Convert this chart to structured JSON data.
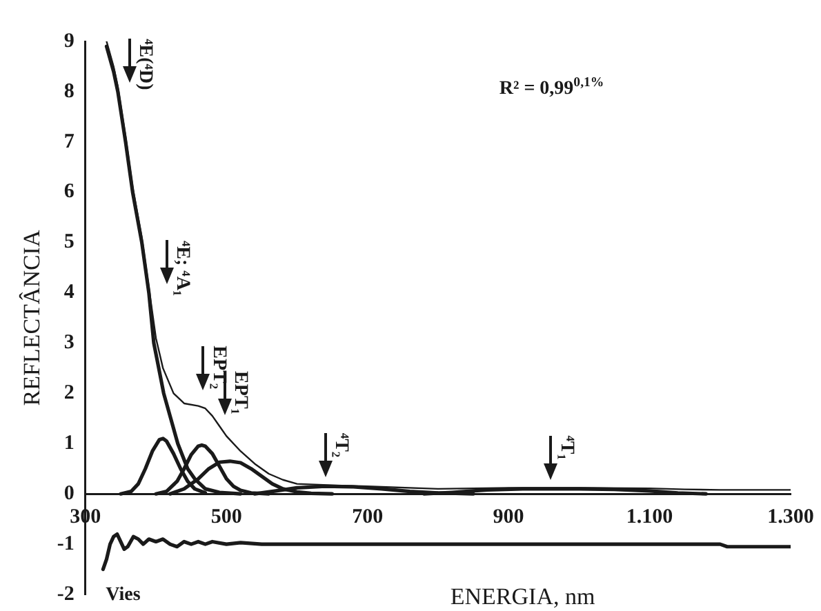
{
  "chart_data": {
    "type": "line",
    "xlabel": "ENERGIA, nm",
    "ylabel": "REFLECTÂNCIA",
    "xlim": [
      300,
      1300
    ],
    "xticks": [
      300,
      500,
      700,
      900,
      {
        "value": 1100,
        "label": "1.100"
      },
      {
        "value": 1300,
        "label": "1.300"
      }
    ],
    "ylim": [
      -2,
      9
    ],
    "yticks": [
      -2,
      -1,
      0,
      1,
      2,
      3,
      4,
      5,
      6,
      7,
      8,
      9
    ],
    "grid": false,
    "legend": false,
    "marker": "none",
    "line_style": "solid",
    "series": [
      {
        "color": "#1a1a1a",
        "x": [
          330,
          340,
          346,
          357,
          367,
          380,
          390,
          400,
          410,
          425,
          440,
          460,
          470,
          480,
          490,
          500,
          520,
          540,
          560,
          580,
          600,
          650,
          700,
          800,
          900,
          1000,
          1100,
          1150,
          1200,
          1300
        ],
        "values": [
          9,
          8.5,
          8.1,
          7.1,
          6.1,
          5.1,
          4.1,
          3.1,
          2.5,
          2.0,
          1.8,
          1.75,
          1.7,
          1.55,
          1.35,
          1.15,
          0.85,
          0.6,
          0.4,
          0.28,
          0.2,
          0.17,
          0.15,
          0.1,
          0.12,
          0.12,
          0.11,
          0.09,
          0.08,
          0.08
        ]
      },
      {
        "color": "#1a1a1a",
        "x": [
          330,
          340,
          346,
          357,
          367,
          380,
          390,
          397,
          411,
          431,
          445,
          455,
          470,
          490,
          520
        ],
        "values": [
          8.9,
          8.4,
          8.0,
          7.0,
          6.0,
          5.0,
          4.0,
          3.0,
          2.0,
          1.0,
          0.5,
          0.3,
          0.1,
          0.03,
          0
        ]
      },
      {
        "color": "#1a1a1a",
        "x": [
          350,
          365,
          375,
          385,
          395,
          405,
          410,
          415,
          425,
          435,
          445,
          455,
          470
        ],
        "values": [
          0,
          0.05,
          0.2,
          0.5,
          0.85,
          1.08,
          1.1,
          1.05,
          0.8,
          0.5,
          0.25,
          0.1,
          0.02
        ]
      },
      {
        "color": "#1a1a1a",
        "x": [
          400,
          415,
          430,
          440,
          450,
          460,
          465,
          470,
          480,
          490,
          500,
          510,
          520,
          535,
          560
        ],
        "values": [
          0,
          0.05,
          0.25,
          0.5,
          0.78,
          0.95,
          0.97,
          0.95,
          0.8,
          0.55,
          0.3,
          0.15,
          0.07,
          0.02,
          0
        ]
      },
      {
        "color": "#1a1a1a",
        "x": [
          420,
          440,
          460,
          475,
          490,
          505,
          520,
          535,
          550,
          565,
          580,
          600,
          620,
          650
        ],
        "values": [
          0,
          0.1,
          0.3,
          0.5,
          0.63,
          0.65,
          0.62,
          0.5,
          0.35,
          0.2,
          0.1,
          0.04,
          0.01,
          0
        ]
      },
      {
        "color": "#1a1a1a",
        "x": [
          540,
          570,
          600,
          640,
          680,
          720,
          760,
          800,
          850
        ],
        "values": [
          0,
          0.06,
          0.12,
          0.15,
          0.14,
          0.1,
          0.05,
          0.02,
          0
        ]
      },
      {
        "color": "#1a1a1a",
        "x": [
          780,
          820,
          870,
          920,
          960,
          1000,
          1050,
          1100,
          1140,
          1180
        ],
        "values": [
          0,
          0.03,
          0.08,
          0.1,
          0.1,
          0.1,
          0.09,
          0.06,
          0.02,
          0
        ]
      },
      {
        "name": "Vies",
        "color": "#1a1a1a",
        "x": [
          325,
          330,
          335,
          340,
          345,
          350,
          355,
          360,
          368,
          375,
          382,
          390,
          400,
          410,
          420,
          430,
          440,
          450,
          460,
          470,
          480,
          500,
          520,
          550,
          600,
          700,
          800,
          1000,
          1200,
          1210,
          1300
        ],
        "values": [
          -1.5,
          -1.3,
          -1.0,
          -0.85,
          -0.8,
          -0.95,
          -1.1,
          -1.05,
          -0.85,
          -0.9,
          -1.0,
          -0.9,
          -0.95,
          -0.9,
          -1.0,
          -1.05,
          -0.95,
          -1.0,
          -0.95,
          -1.0,
          -0.95,
          -1.0,
          -0.97,
          -1.0,
          -1.0,
          -1.0,
          -1.0,
          -1.0,
          -1.0,
          -1.05,
          -1.05
        ]
      }
    ],
    "annotations": [
      "⁴E(⁴D)",
      "⁴E; ⁴A₁",
      "EPT₂",
      {
        "text": "EPT₁",
        "x": 497,
        "y": 1.4
      },
      {
        "text": "⁴T₂",
        "x": 640,
        "y": 0.17
      },
      {
        "text": "⁴T₁",
        "x": 960,
        "y": 0.12
      },
      "R² = 0,99$^{0,1%}$"
    ]
  }
}
